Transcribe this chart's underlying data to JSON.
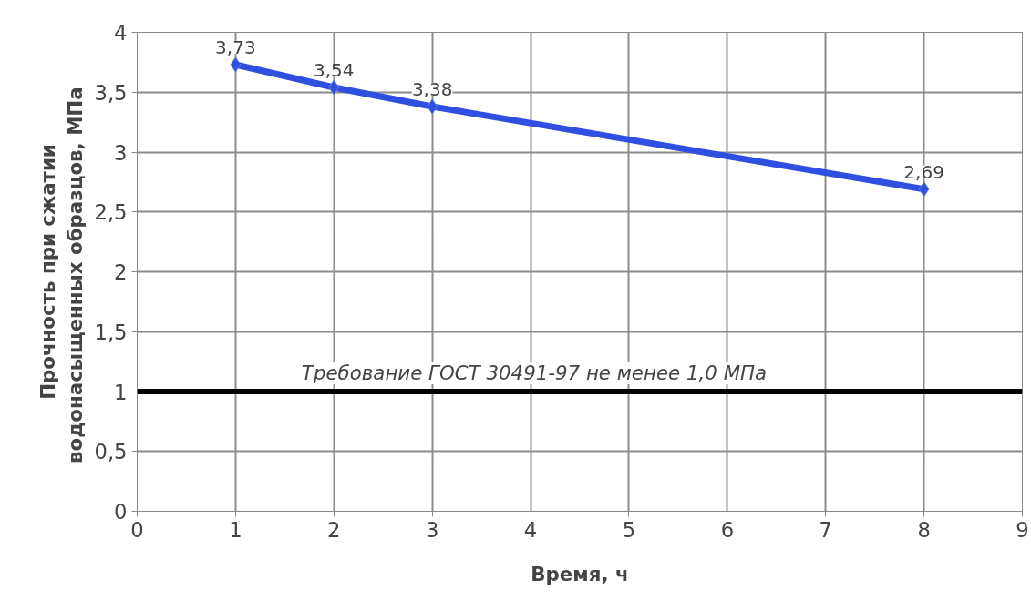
{
  "chart_data": {
    "type": "line",
    "xlabel": "Время, ч",
    "ylabel": "Прочность при сжатии\nводонасыщенных  образцов, МПа",
    "x": [
      1,
      2,
      3,
      8
    ],
    "series": [
      {
        "color": "#2e4fe0",
        "values": [
          3.73,
          3.54,
          3.38,
          2.69
        ],
        "value_labels": [
          "3,73",
          "3,54",
          "3,38",
          "2,69"
        ]
      }
    ],
    "xlim": [
      0,
      9
    ],
    "xticks": [
      0,
      1,
      2,
      3,
      4,
      5,
      6,
      7,
      8,
      9
    ],
    "ylim": [
      0,
      4
    ],
    "yticks": [
      0,
      {
        "value": 0.5,
        "label": "0,5"
      },
      1,
      {
        "value": 1.5,
        "label": "1,5"
      },
      2,
      {
        "value": 2.5,
        "label": "2,5"
      },
      3,
      {
        "value": 3.5,
        "label": "3,5"
      },
      4
    ],
    "ref_lines": [
      {
        "axis": "y",
        "value": 1,
        "label": "Требование ГОСТ 30491-97 не менее 1,0 МПа",
        "color": "#000000"
      }
    ],
    "grid": true,
    "marker": "diamond",
    "line_style": "solid"
  }
}
